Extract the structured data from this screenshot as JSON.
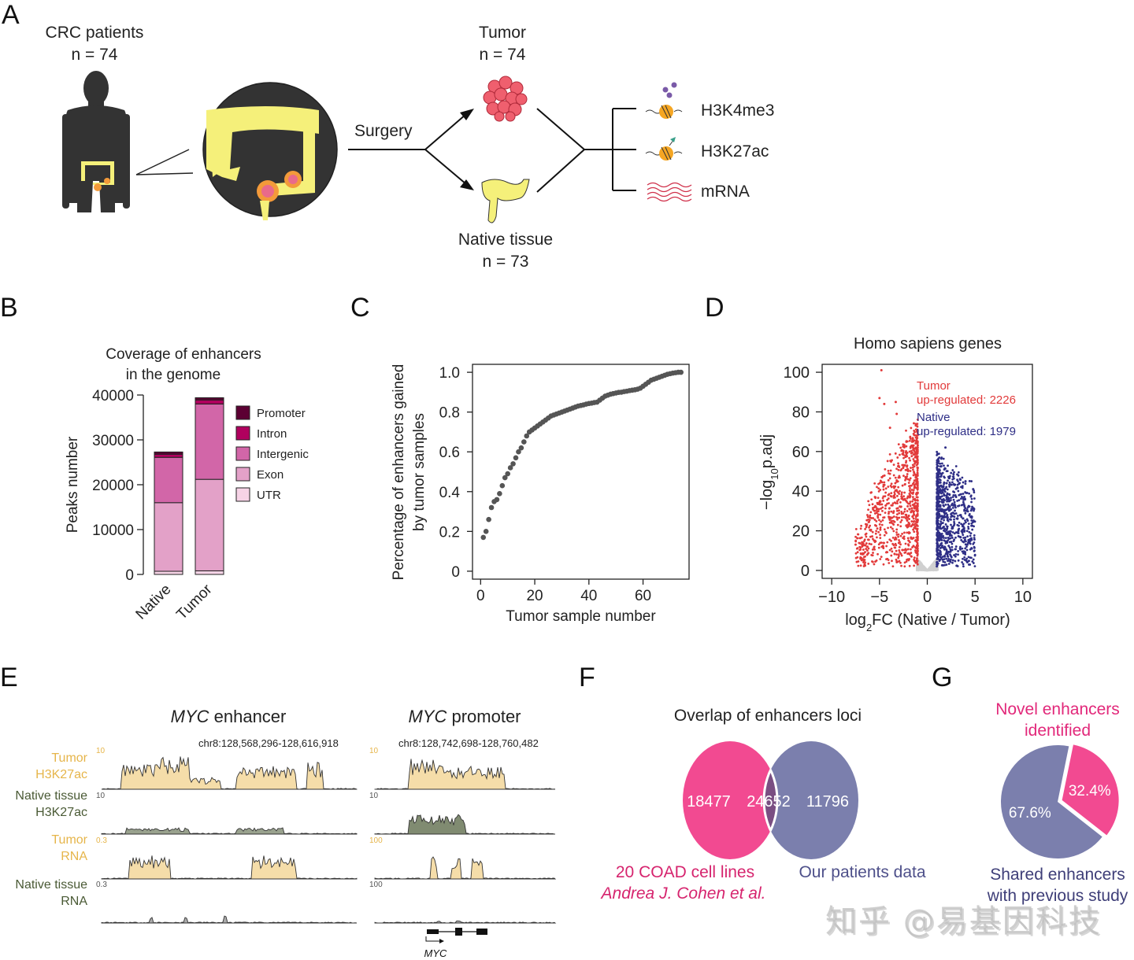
{
  "panels": {
    "A": {
      "letter": "A",
      "patients_label": "CRC patients",
      "patients_n": "n = 74",
      "surgery_label": "Surgery",
      "tumor_label": "Tumor",
      "tumor_n": "n = 74",
      "native_label": "Native tissue",
      "native_n": "n = 73",
      "assays": [
        {
          "label": "H3K4me3",
          "icon": "nucleosome-methylation-icon"
        },
        {
          "label": "H3K27ac",
          "icon": "nucleosome-acetylation-icon"
        },
        {
          "label": "mRNA",
          "icon": "mrna-wave-icon"
        }
      ]
    },
    "B": {
      "letter": "B"
    },
    "C": {
      "letter": "C"
    },
    "D": {
      "letter": "D"
    },
    "E": {
      "letter": "E",
      "enhancer_title_italic": "MYC",
      "enhancer_title_rest": " enhancer",
      "promoter_title_italic": "MYC",
      "promoter_title_rest": " promoter",
      "enhancer_coords": "chr8:128,568,296-128,616,918",
      "promoter_coords": "chr8:128,742,698-128,760,482",
      "tracks": [
        {
          "line1": "Tumor",
          "line2": "H3K27ac",
          "enh_scale": "10",
          "pro_scale": "10",
          "color": "#e8b84a"
        },
        {
          "line1": "Native tissue",
          "line2": "H3K27ac",
          "enh_scale": "10",
          "pro_scale": "10",
          "color": "#4a5a35"
        },
        {
          "line1": "Tumor",
          "line2": "RNA",
          "enh_scale": "0.3",
          "pro_scale": "100",
          "color": "#e8b84a"
        },
        {
          "line1": "Native tissue",
          "line2": "RNA",
          "enh_scale": "0.3",
          "pro_scale": "100",
          "color": "#4a5a35"
        }
      ],
      "gene_label": "MYC"
    },
    "F": {
      "letter": "F"
    },
    "G": {
      "letter": "G"
    }
  },
  "watermark": "知乎 @易基因科技",
  "colors": {
    "pink": "#f24a91",
    "purple_grey": "#7b7fad",
    "overlap": "#7a4e82",
    "red": "#e23a3a",
    "navy": "#2e2e86",
    "tumor_track": "#e8b84a",
    "native_track": "#4a5a35"
  },
  "chart_data": [
    {
      "id": "B",
      "type": "bar",
      "stacked": true,
      "title": "Coverage of enhancers in the genome",
      "xlabel": "",
      "ylabel": "Peaks number",
      "ylim": [
        0,
        40000
      ],
      "yticks": [
        "0",
        "10000",
        "20000",
        "30000",
        "40000"
      ],
      "categories": [
        "Native",
        "Tumor"
      ],
      "series": [
        {
          "name": "UTR",
          "color": "#f6d3e6",
          "values": [
            700,
            800
          ]
        },
        {
          "name": "Exon",
          "color": "#e3a1c8",
          "values": [
            15300,
            20400
          ]
        },
        {
          "name": "Intergenic",
          "color": "#d266a8",
          "values": [
            10100,
            16800
          ]
        },
        {
          "name": "Intron",
          "color": "#b0005e",
          "values": [
            700,
            900
          ]
        },
        {
          "name": "Promoter",
          "color": "#5c0033",
          "values": [
            500,
            500
          ]
        }
      ],
      "legend_order": [
        "Promoter",
        "Intron",
        "Intergenic",
        "Exon",
        "UTR"
      ],
      "legend": "right"
    },
    {
      "id": "C",
      "type": "scatter",
      "title": "",
      "xlabel": "Tumor sample number",
      "ylabel_line1": "Percentage of enhancers gained",
      "ylabel_line2": "by tumor samples",
      "xlim": [
        -3,
        77
      ],
      "ylim": [
        -0.04,
        1.04
      ],
      "xticks": [
        "0",
        "20",
        "40",
        "60"
      ],
      "yticks": [
        "0",
        "0.2",
        "0.4",
        "0.6",
        "0.8",
        "1.0"
      ],
      "x": [
        1,
        2,
        3,
        4,
        5,
        6,
        7,
        8,
        9,
        10,
        11,
        12,
        13,
        14,
        15,
        16,
        17,
        18,
        19,
        20,
        21,
        22,
        23,
        24,
        25,
        26,
        27,
        28,
        29,
        30,
        31,
        32,
        33,
        34,
        35,
        36,
        37,
        38,
        39,
        40,
        41,
        42,
        43,
        44,
        45,
        46,
        47,
        48,
        49,
        50,
        51,
        52,
        53,
        54,
        55,
        56,
        57,
        58,
        59,
        60,
        61,
        62,
        63,
        64,
        65,
        66,
        67,
        68,
        69,
        70,
        71,
        72,
        73,
        74
      ],
      "y": [
        0.17,
        0.2,
        0.26,
        0.32,
        0.35,
        0.36,
        0.39,
        0.43,
        0.47,
        0.49,
        0.52,
        0.54,
        0.57,
        0.6,
        0.62,
        0.65,
        0.68,
        0.7,
        0.71,
        0.72,
        0.73,
        0.74,
        0.75,
        0.76,
        0.77,
        0.78,
        0.785,
        0.79,
        0.795,
        0.8,
        0.805,
        0.81,
        0.815,
        0.82,
        0.825,
        0.83,
        0.833,
        0.836,
        0.84,
        0.843,
        0.845,
        0.848,
        0.85,
        0.86,
        0.87,
        0.88,
        0.885,
        0.89,
        0.893,
        0.896,
        0.899,
        0.9,
        0.903,
        0.905,
        0.908,
        0.91,
        0.912,
        0.915,
        0.92,
        0.93,
        0.94,
        0.95,
        0.96,
        0.965,
        0.97,
        0.975,
        0.98,
        0.985,
        0.99,
        0.993,
        0.996,
        0.998,
        1.0,
        1.0
      ],
      "color": "#555555"
    },
    {
      "id": "D",
      "type": "scatter",
      "subtype": "volcano",
      "title": "Homo sapiens genes",
      "xlabel": "log2FC (Native / Tumor)",
      "ylabel": "-log10p.adj",
      "xlim": [
        -11,
        11
      ],
      "ylim": [
        -4,
        104
      ],
      "xticks": [
        "−10",
        "−5",
        "0",
        "5",
        "10"
      ],
      "yticks": [
        "0",
        "20",
        "40",
        "60",
        "80",
        "100"
      ],
      "annotations": [
        {
          "text": "Tumor",
          "color": "#e23a3a"
        },
        {
          "text": "up-regulated: 2226",
          "color": "#e23a3a"
        },
        {
          "text": "Native",
          "color": "#2e2e86"
        },
        {
          "text": "up-regulated: 1979",
          "color": "#2e2e86"
        }
      ],
      "groups": [
        {
          "name": "Tumor up-regulated",
          "count": 2226,
          "color": "#e23a3a",
          "x_range": [
            -7.5,
            -1
          ],
          "y_max": 101
        },
        {
          "name": "Native up-regulated",
          "count": 1979,
          "color": "#2e2e86",
          "x_range": [
            1,
            5
          ],
          "y_max": 62
        },
        {
          "name": "Not significant",
          "color": "#d0d0d0",
          "x_range": [
            -1,
            1
          ],
          "y_max": 8
        }
      ]
    },
    {
      "id": "F",
      "type": "venn",
      "title": "Overlap of enhancers loci",
      "sets": [
        {
          "name": "20 COAD cell lines",
          "subtitle": "Andrea J. Cohen et al.",
          "only": 18477,
          "color": "#f24a91"
        },
        {
          "name": "Our patients data",
          "only": 11796,
          "color": "#7b7fad"
        }
      ],
      "overlap": 24652,
      "overlap_color": "#7a4e82"
    },
    {
      "id": "G",
      "type": "pie",
      "slices": [
        {
          "label": "Novel enhancers identified",
          "value": 32.4,
          "display": "32.4%",
          "color": "#f24a91",
          "exploded": true
        },
        {
          "label": "Shared enhancers with previous study",
          "value": 67.6,
          "display": "67.6%",
          "color": "#7b7fad"
        }
      ],
      "label_top_line1": "Novel enhancers",
      "label_top_line2": "identified",
      "label_bottom_line1": "Shared enhancers",
      "label_bottom_line2": "with previous study"
    }
  ]
}
